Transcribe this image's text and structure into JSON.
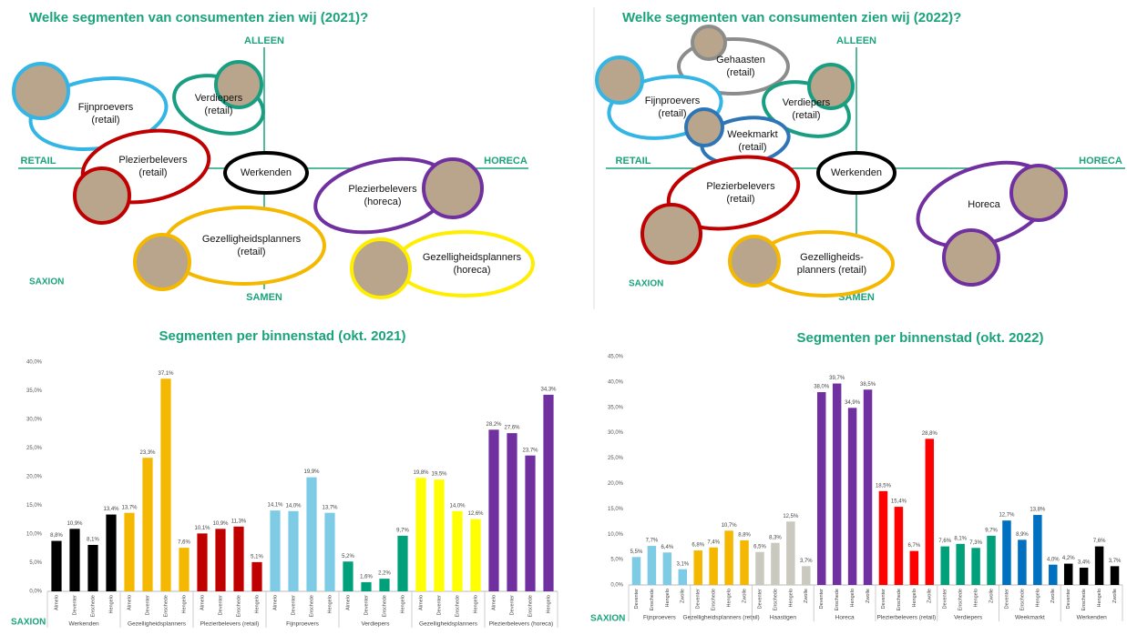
{
  "diagrams": [
    {
      "title": "Welke segmenten van consumenten zien wij (2021)?",
      "axis_labels": {
        "top": "ALLEEN",
        "bottom": "SAMEN",
        "left": "RETAIL",
        "right": "HORECA"
      },
      "segments": [
        {
          "label": [
            "Fijnproevers",
            "(retail)"
          ],
          "color": "#33b5e5"
        },
        {
          "label": [
            "Verdiepers",
            "(retail)"
          ],
          "color": "#1a9e82"
        },
        {
          "label": [
            "Plezierbelevers",
            "(retail)"
          ],
          "color": "#c00000"
        },
        {
          "label": [
            "Werkenden"
          ],
          "color": "#000000"
        },
        {
          "label": [
            "Plezierbelevers",
            "(horeca)"
          ],
          "color": "#7030a0"
        },
        {
          "label": [
            "Gezelligheidsplanners",
            "(retail)"
          ],
          "color": "#f5b800"
        },
        {
          "label": [
            "Gezelligheidsplanners",
            "(horeca)"
          ],
          "color": "#ffee00"
        }
      ],
      "logo": "SAXION"
    },
    {
      "title": "Welke segmenten van consumenten zien wij (2022)?",
      "axis_labels": {
        "top": "ALLEEN",
        "bottom": "SAMEN",
        "left": "RETAIL",
        "right": "HORECA"
      },
      "segments": [
        {
          "label": [
            "Gehaasten",
            "(retail)"
          ],
          "color": "#8c8c8c"
        },
        {
          "label": [
            "Fijnproevers",
            "(retail)"
          ],
          "color": "#33b5e5"
        },
        {
          "label": [
            "Verdiepers",
            "(retail)"
          ],
          "color": "#1a9e82"
        },
        {
          "label": [
            "Weekmarkt",
            "(retail)"
          ],
          "color": "#2e75b6"
        },
        {
          "label": [
            "Plezierbelevers",
            "(retail)"
          ],
          "color": "#c00000"
        },
        {
          "label": [
            "Werkenden"
          ],
          "color": "#000000"
        },
        {
          "label": [
            "Horeca"
          ],
          "color": "#7030a0"
        },
        {
          "label": [
            "Gezelligheids-",
            "planners (retail)"
          ],
          "color": "#f5b800"
        }
      ],
      "logo": "SAXION"
    }
  ],
  "chart_data": [
    {
      "type": "bar",
      "title": "Segmenten per binnenstad (okt. 2021)",
      "grid": false,
      "ylim": [
        0,
        40
      ],
      "yticks": [
        {
          "value": 0,
          "label": "0,0%"
        },
        {
          "value": 5,
          "label": "5,0%"
        },
        {
          "value": 10,
          "label": "10,0%"
        },
        {
          "value": 15,
          "label": "15,0%"
        },
        {
          "value": 20,
          "label": "20,0%"
        },
        {
          "value": 25,
          "label": "25,0%"
        },
        {
          "value": 30,
          "label": "30,0%"
        },
        {
          "value": 35,
          "label": "35,0%"
        },
        {
          "value": 40,
          "label": "40,0%"
        }
      ],
      "groups": [
        {
          "name": "Werkenden",
          "color": "#000000",
          "categories": [
            "Almelo",
            "Deventer",
            "Enschede",
            "Hengelo"
          ],
          "values": [
            8.8,
            10.9,
            8.1,
            13.4
          ],
          "value_labels": [
            "8,8%",
            "10,9%",
            "8,1%",
            "13,4%"
          ]
        },
        {
          "name": "Gezelligheidsplanners",
          "color": "#f5b800",
          "categories": [
            "Almelo",
            "Deventer",
            "Enschede",
            "Hengelo"
          ],
          "values": [
            13.7,
            23.3,
            37.1,
            7.6
          ],
          "value_labels": [
            "13,7%",
            "23,3%",
            "37,1%",
            "7,6%"
          ]
        },
        {
          "name": "Plezierbelevers (retail)",
          "color": "#c00000",
          "categories": [
            "Almelo",
            "Deventer",
            "Enschede",
            "Hengelo"
          ],
          "values": [
            10.1,
            10.9,
            11.3,
            5.1
          ],
          "value_labels": [
            "10,1%",
            "10,9%",
            "11,3%",
            "5,1%"
          ]
        },
        {
          "name": "Fijnproevers",
          "color": "#7ecbe6",
          "categories": [
            "Almelo",
            "Deventer",
            "Enschede",
            "Hengelo"
          ],
          "values": [
            14.1,
            14.0,
            19.9,
            13.7
          ],
          "value_labels": [
            "14,1%",
            "14,0%",
            "19,9%",
            "13,7%"
          ]
        },
        {
          "name": "Verdiepers",
          "color": "#00a07a",
          "categories": [
            "Almelo",
            "Deventer",
            "Enschede",
            "Hengelo"
          ],
          "values": [
            5.2,
            1.6,
            2.2,
            9.7
          ],
          "value_labels": [
            "5,2%",
            "1,6%",
            "2,2%",
            "9,7%"
          ]
        },
        {
          "name": "Gezelligheidsplanners",
          "color": "#ffff00",
          "categories": [
            "Almelo",
            "Deventer",
            "Enschede",
            "Hengelo"
          ],
          "values": [
            19.8,
            19.5,
            14.0,
            12.6
          ],
          "value_labels": [
            "19,8%",
            "19,5%",
            "14,0%",
            "12,6%"
          ]
        },
        {
          "name": "Plezierbelevers (horeca)",
          "color": "#7030a0",
          "categories": [
            "Almelo",
            "Deventer",
            "Enschede",
            "Hengelo"
          ],
          "values": [
            28.2,
            27.6,
            23.7,
            34.3
          ],
          "value_labels": [
            "28,2%",
            "27,6%",
            "23,7%",
            "34,3%"
          ]
        }
      ],
      "logo": "SAXION"
    },
    {
      "type": "bar",
      "title": "Segmenten per binnenstad (okt. 2022)",
      "grid": false,
      "ylim": [
        0,
        45
      ],
      "yticks": [
        {
          "value": 0,
          "label": "0,0%"
        },
        {
          "value": 5,
          "label": "5,0%"
        },
        {
          "value": 10,
          "label": "10,0%"
        },
        {
          "value": 15,
          "label": "15,0%"
        },
        {
          "value": 20,
          "label": "20,0%"
        },
        {
          "value": 25,
          "label": "25,0%"
        },
        {
          "value": 30,
          "label": "30,0%"
        },
        {
          "value": 35,
          "label": "35,0%"
        },
        {
          "value": 40,
          "label": "40,0%"
        },
        {
          "value": 45,
          "label": "45,0%"
        }
      ],
      "groups": [
        {
          "name": "Fijnproevers",
          "color": "#7ecbe6",
          "categories": [
            "Deventer",
            "Enschede",
            "Hengelo",
            "Zwolle"
          ],
          "values": [
            5.5,
            7.7,
            6.4,
            3.1
          ],
          "value_labels": [
            "5,5%",
            "7,7%",
            "6,4%",
            "3,1%"
          ]
        },
        {
          "name": "Gezelligheidsplanners (retail)",
          "color": "#f5b800",
          "categories": [
            "Deventer",
            "Enschede",
            "Hengelo",
            "Zwolle"
          ],
          "values": [
            6.8,
            7.4,
            10.7,
            8.8
          ],
          "value_labels": [
            "6,8%",
            "7,4%",
            "10,7%",
            "8,8%"
          ]
        },
        {
          "name": "Haastigen",
          "color": "#c9c9c0",
          "categories": [
            "Deventer",
            "Enschede",
            "Hengelo",
            "Zwolle"
          ],
          "values": [
            6.5,
            8.3,
            12.5,
            3.7
          ],
          "value_labels": [
            "6,5%",
            "8,3%",
            "12,5%",
            "3,7%"
          ]
        },
        {
          "name": "Horeca",
          "color": "#7030a0",
          "categories": [
            "Deventer",
            "Enschede",
            "Hengelo",
            "Zwolle"
          ],
          "values": [
            38.0,
            39.7,
            34.9,
            38.5
          ],
          "value_labels": [
            "38,0%",
            "39,7%",
            "34,9%",
            "38,5%"
          ]
        },
        {
          "name": "Plezierbelevers (retail)",
          "color": "#ff0000",
          "categories": [
            "Deventer",
            "Enschede",
            "Hengelo",
            "Zwolle"
          ],
          "values": [
            18.5,
            15.4,
            6.7,
            28.8
          ],
          "value_labels": [
            "18,5%",
            "15,4%",
            "6,7%",
            "28,8%"
          ]
        },
        {
          "name": "Verdiepers",
          "color": "#00a07a",
          "categories": [
            "Deventer",
            "Enschede",
            "Hengelo",
            "Zwolle"
          ],
          "values": [
            7.6,
            8.1,
            7.3,
            9.7
          ],
          "value_labels": [
            "7,6%",
            "8,1%",
            "7,3%",
            "9,7%"
          ]
        },
        {
          "name": "Weekmarkt",
          "color": "#0070c0",
          "categories": [
            "Deventer",
            "Enschede",
            "Hengelo",
            "Zwolle"
          ],
          "values": [
            12.7,
            8.9,
            13.8,
            4.0
          ],
          "value_labels": [
            "12,7%",
            "8,9%",
            "13,8%",
            "4,0%"
          ]
        },
        {
          "name": "Werkenden",
          "color": "#000000",
          "categories": [
            "Deventer",
            "Enschede",
            "Hengelo",
            "Zwolle"
          ],
          "values": [
            4.2,
            3.4,
            7.6,
            3.7
          ],
          "value_labels": [
            "4,2%",
            "3,4%",
            "7,6%",
            "3,7%"
          ]
        }
      ],
      "logo": "SAXION"
    }
  ]
}
